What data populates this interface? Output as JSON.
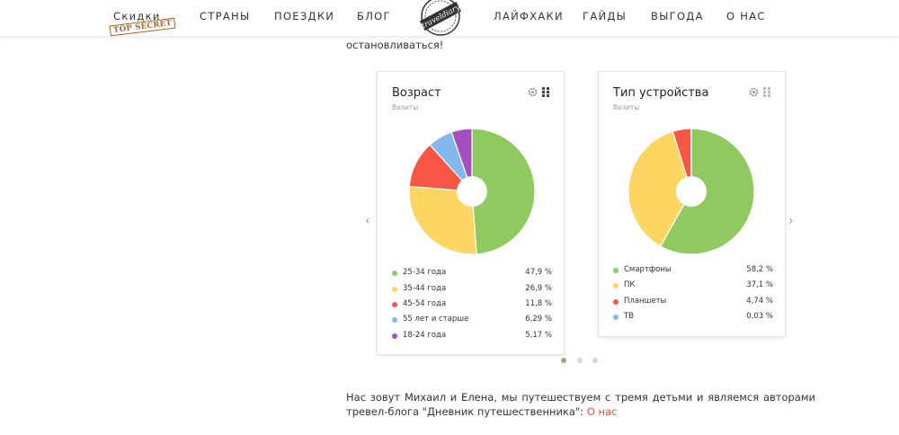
{
  "nav": {
    "skidki": "Скидки",
    "skidki_stamp": "TOP SECRET",
    "items_left": [
      "Страны",
      "Поездки",
      "Блог"
    ],
    "logo_text": "traveldiary",
    "items_right": [
      "Лайфхаки",
      "Гайды",
      "Выгода",
      "О нас"
    ]
  },
  "intro_text": "остановливаться!",
  "cards": [
    {
      "title": "Возраст",
      "subtitle": "Визиты",
      "legend": [
        {
          "label": "25-34 года",
          "value": "47,9 %"
        },
        {
          "label": "35-44 года",
          "value": "26,9 %"
        },
        {
          "label": "45-54 года",
          "value": "11,8 %"
        },
        {
          "label": "55 лет и старше",
          "value": "6,29 %"
        },
        {
          "label": "18-24 года",
          "value": "5,17 %"
        }
      ]
    },
    {
      "title": "Тип устройства",
      "subtitle": "Визиты",
      "legend": [
        {
          "label": "Смартфоны",
          "value": "58,2 %"
        },
        {
          "label": "ПК",
          "value": "37,1 %"
        },
        {
          "label": "Планшеты",
          "value": "4,74 %"
        },
        {
          "label": "ТВ",
          "value": "0,03 %"
        }
      ]
    }
  ],
  "chart_data": [
    {
      "type": "pie",
      "title": "Возраст",
      "subtitle": "Визиты",
      "categories": [
        "25-34 года",
        "35-44 года",
        "45-54 года",
        "55 лет и старше",
        "18-24 года"
      ],
      "values": [
        47.9,
        26.9,
        11.8,
        6.29,
        5.17
      ],
      "colors": [
        "#8fc95f",
        "#fdd563",
        "#f95545",
        "#82b8ec",
        "#a44fbd"
      ],
      "legend": "bottom"
    },
    {
      "type": "pie",
      "title": "Тип устройства",
      "subtitle": "Визиты",
      "categories": [
        "Смартфоны",
        "ПК",
        "Планшеты",
        "ТВ"
      ],
      "values": [
        58.2,
        37.1,
        4.74,
        0.03
      ],
      "colors": [
        "#8fc95f",
        "#fdd563",
        "#f95545",
        "#82b8ec"
      ],
      "legend": "bottom"
    }
  ],
  "carousel": {
    "prev_icon": "chevron-left-icon",
    "next_icon": "chevron-right-icon",
    "active_dot": 0,
    "dot_count": 3
  },
  "bio": {
    "line1": "Нас зовут Михаил и Елена, мы путешествуем с тремя детьми и являемся авторами",
    "line2": "тревел-блога \"Дневник путешественника\":",
    "link": "О нас"
  }
}
